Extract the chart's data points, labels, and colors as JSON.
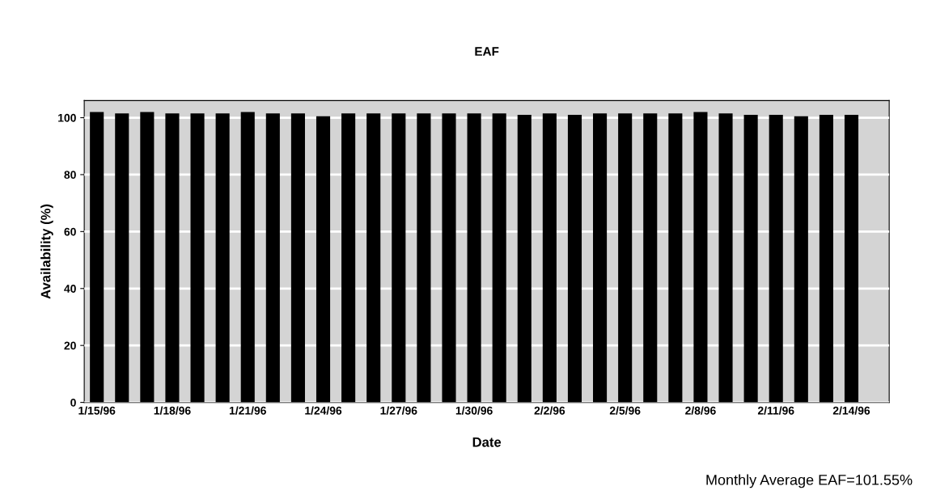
{
  "chart_data": {
    "type": "bar",
    "title": "EAF",
    "xlabel": "Date",
    "ylabel": "Availability (%)",
    "categories": [
      "1/15/96",
      null,
      null,
      "1/18/96",
      null,
      null,
      "1/21/96",
      null,
      null,
      "1/24/96",
      null,
      null,
      "1/27/96",
      null,
      null,
      "1/30/96",
      null,
      null,
      "2/2/96",
      null,
      null,
      "2/5/96",
      null,
      null,
      "2/8/96",
      null,
      null,
      "2/11/96",
      null,
      null,
      "2/14/96",
      null
    ],
    "values": [
      102,
      101.5,
      102,
      101.5,
      101.5,
      101.5,
      102,
      101.5,
      101.5,
      100.5,
      101.5,
      101.5,
      101.5,
      101.5,
      101.5,
      101.5,
      101.5,
      101,
      101.5,
      101,
      101.5,
      101.5,
      101.5,
      101.5,
      102,
      101.5,
      101,
      101,
      100.5,
      101,
      101,
      null
    ],
    "color": "#000000",
    "ylim": [
      0,
      106
    ],
    "yticks": [
      0,
      20,
      40,
      60,
      80,
      100
    ],
    "grid": "y",
    "annotations": [
      "Monthly Average EAF=101.55%"
    ]
  }
}
